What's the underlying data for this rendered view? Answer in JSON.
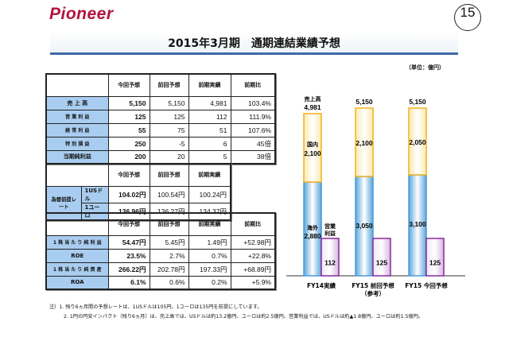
{
  "header": {
    "logo": "Pioneer",
    "page_number": "15",
    "title": "2015年3月期　通期連結業績予想",
    "unit": "（単位：億円）"
  },
  "table1": {
    "headers": [
      "",
      "今回予想",
      "前回予想",
      "前期実績",
      "前期比"
    ],
    "rows": [
      [
        "売 上 高",
        "5,150",
        "5,150",
        "4,981",
        "103.4%"
      ],
      [
        "営 業 利 益",
        "125",
        "125",
        "112",
        "111.9%"
      ],
      [
        "経 常 利 益",
        "55",
        "75",
        "51",
        "107.6%"
      ],
      [
        "特 別 損 益",
        "250",
        "-5",
        "6",
        "45倍"
      ],
      [
        "当期純利益",
        "200",
        "20",
        "5",
        "38倍"
      ]
    ]
  },
  "table2": {
    "headers": [
      "",
      "今回予想",
      "前回予想",
      "前期実績"
    ],
    "group_label": "為替前提レート",
    "rows": [
      [
        "1USドル",
        "104.02円",
        "100.54円",
        "100.24円"
      ],
      [
        "1ユーロ",
        "136.96円",
        "136.27円",
        "134.37円"
      ]
    ]
  },
  "table3": {
    "headers": [
      "",
      "今回予想",
      "前回予想",
      "前期実績",
      "前期比"
    ],
    "rows": [
      [
        "1 株 当 た り 純 利 益",
        "54.47円",
        "5.45円",
        "1.49円",
        "+52.98円"
      ],
      [
        "ROE",
        "23.5%",
        "2.7%",
        "0.7%",
        "+22.8%"
      ],
      [
        "1 株 当 た り 純 資 産",
        "266.22円",
        "202.78円",
        "197.33円",
        "+68.89円"
      ],
      [
        "ROA",
        "6.1%",
        "0.6%",
        "0.2%",
        "+5.9%"
      ]
    ]
  },
  "chart_data": {
    "type": "bar",
    "categories": [
      "FY14実績",
      "FY15 前回予想\n（参考）",
      "FY15 今回予想"
    ],
    "series": [
      {
        "name": "海外",
        "values": [
          2880,
          3050,
          3100
        ],
        "color": "#5aa6dc"
      },
      {
        "name": "国内",
        "values": [
          2100,
          2100,
          2050
        ],
        "color": "#f6b92e"
      },
      {
        "name": "営業利益",
        "values": [
          112,
          125,
          125
        ],
        "color": "#8a2a9c"
      }
    ],
    "totals": [
      4981,
      5150,
      5150
    ],
    "total_labels": [
      "4,981",
      "5,150",
      "5,150"
    ],
    "total_title": "売上高",
    "segment_labels": {
      "overseas": [
        "2,880",
        "3,050",
        "3,100"
      ],
      "domestic": [
        "2,100",
        "2,100",
        "2,050"
      ],
      "profit": [
        "112",
        "125",
        "125"
      ]
    },
    "domestic_title": "国内",
    "overseas_title": "海外",
    "profit_title": [
      "営業",
      "利益"
    ]
  },
  "notes": [
    "注）1. 残り6ヵ月間の予想レートは、1USドルは105円、1ユーロは135円を前提にしています。",
    "2. 1円の円安インパクト（残り6ヵ月）は、売上高では、USドルは約13.2億円、ユーロは約2.5億円、営業利益では、USドルは約▲1.8億円、ユーロは約1.5億円。"
  ]
}
